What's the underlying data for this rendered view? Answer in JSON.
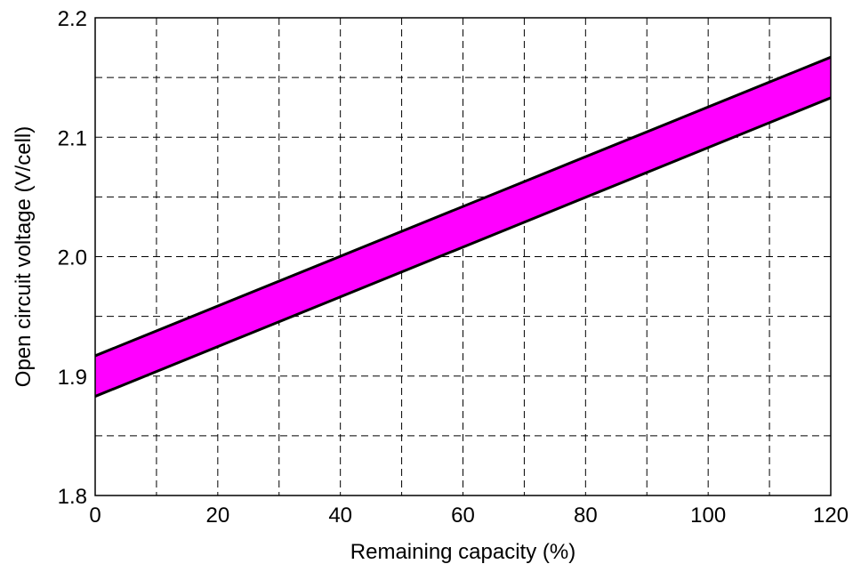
{
  "chart_data": {
    "type": "area",
    "title": "",
    "xlabel": "Remaining capacity (%)",
    "ylabel": "Open circuit voltage (V/cell)",
    "xlim": [
      0,
      120
    ],
    "ylim": [
      1.8,
      2.2
    ],
    "x_ticks": [
      "0",
      "20",
      "40",
      "60",
      "80",
      "100",
      "120"
    ],
    "y_ticks": [
      "1.8",
      "1.9",
      "2.0",
      "2.1",
      "2.2"
    ],
    "grid": true,
    "grid_style": "dashed",
    "band": {
      "fill_color": "#ff00ff",
      "edge_color": "#000000",
      "x": [
        0,
        120
      ],
      "upper": [
        1.917,
        2.167
      ],
      "lower": [
        1.883,
        2.133
      ]
    },
    "legend": "none"
  }
}
